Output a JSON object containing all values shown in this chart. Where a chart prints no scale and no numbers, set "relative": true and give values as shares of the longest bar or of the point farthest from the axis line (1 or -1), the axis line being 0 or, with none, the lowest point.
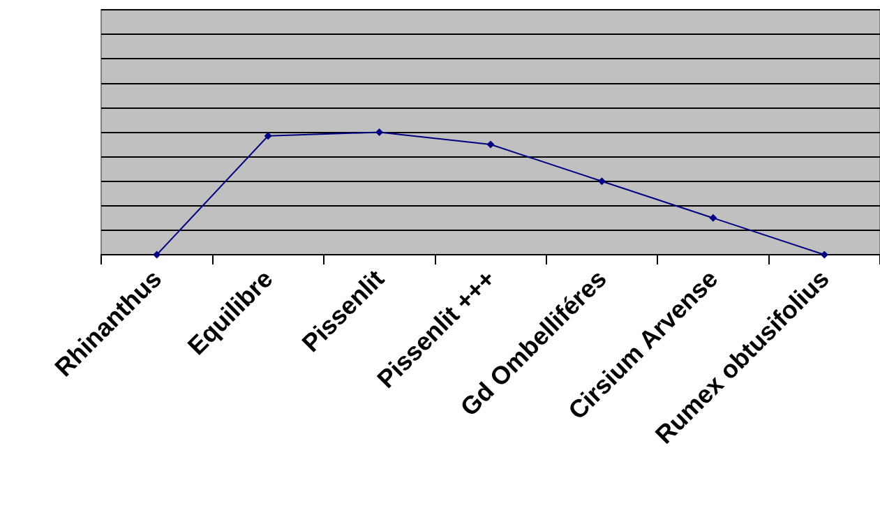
{
  "chart_data": {
    "type": "line",
    "relative": true,
    "categories": [
      "Rhinanthus",
      "Equilibre",
      "Pissenlit",
      "Pissenlit +++",
      "Gd Ombelliféres",
      "Cirsium Arvense",
      "Rumex obtusifolius"
    ],
    "values": [
      0,
      0.97,
      1,
      0.9,
      0.6,
      0.3,
      0
    ],
    "color": "#000080",
    "marker": "diamond",
    "line_style": "solid",
    "grid": "y"
  }
}
